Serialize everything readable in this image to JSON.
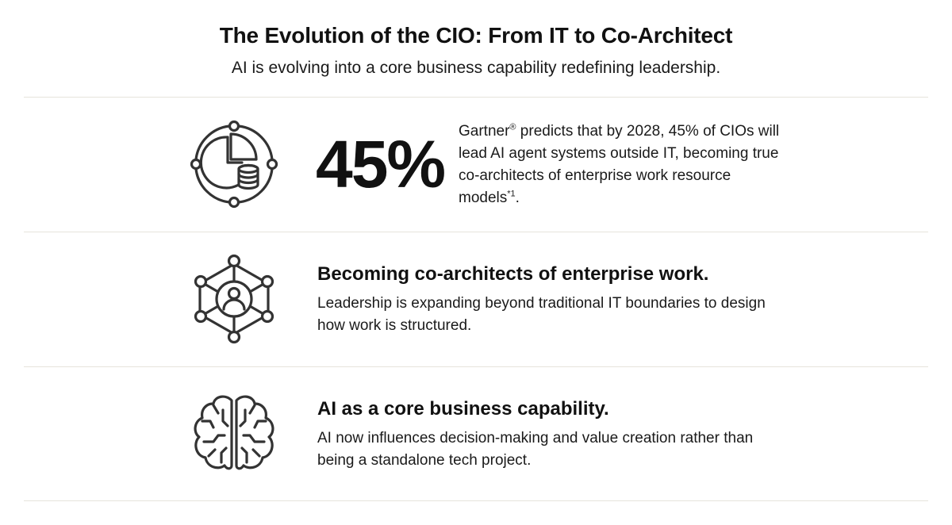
{
  "header": {
    "title": "The Evolution of the CIO: From IT to Co-Architect",
    "subtitle": "AI is evolving into a core business capability redefining leadership."
  },
  "stat_row": {
    "icon": "pie-chart-database-icon",
    "stat_value": "45%",
    "text_before_registered": "Gartner",
    "registered_mark": "®",
    "text_after_registered": " predicts that by 2028, 45% of CIOs will lead AI agent systems outside IT, becoming true co-architects of enterprise work resource models",
    "footnote_mark": "*1",
    "text_end": "."
  },
  "rows": [
    {
      "icon": "network-person-icon",
      "heading": "Becoming co-architects of enterprise work.",
      "body": "Leadership is expanding beyond traditional IT boundaries to design how work is structured."
    },
    {
      "icon": "brain-circuit-icon",
      "heading": "AI as a core business capability.",
      "body": "AI now influences decision-making and value creation rather than being a standalone tech project."
    }
  ],
  "colors": {
    "text": "#111111",
    "icon_stroke": "#333333",
    "divider": "#e6e4dc",
    "background": "#ffffff"
  }
}
